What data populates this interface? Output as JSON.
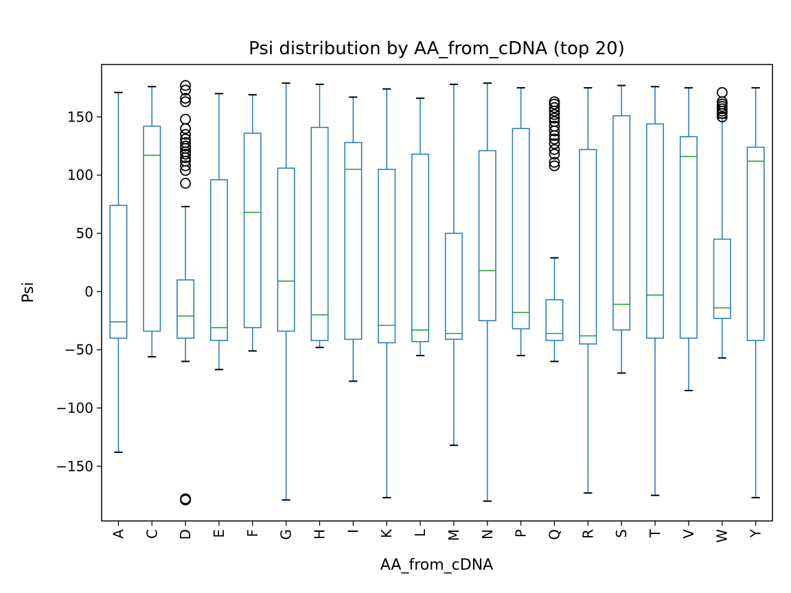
{
  "chart_data": {
    "type": "box",
    "title": "Psi distribution by AA_from_cDNA (top 20)",
    "xlabel": "AA_from_cDNA",
    "ylabel": "Psi",
    "ylim": [
      -197,
      195
    ],
    "yticks": [
      150,
      100,
      50,
      0,
      -50,
      -100,
      -150
    ],
    "ytick_labels": [
      "150",
      "100",
      "50",
      "0",
      "−50",
      "−100",
      "−150"
    ],
    "grid": false,
    "legend": "none",
    "colors": {
      "box": "#1f77b4",
      "median": "#2ca02c",
      "whisker_cap": "#000000",
      "outlier": "#000000"
    },
    "categories": [
      "A",
      "C",
      "D",
      "E",
      "F",
      "G",
      "H",
      "I",
      "K",
      "L",
      "M",
      "N",
      "P",
      "Q",
      "R",
      "S",
      "T",
      "V",
      "W",
      "Y"
    ],
    "boxes": [
      {
        "category": "A",
        "whisker_low": -138,
        "q1": -40,
        "median": -26,
        "q3": 74,
        "whisker_high": 171,
        "outliers": []
      },
      {
        "category": "C",
        "whisker_low": -56,
        "q1": -34,
        "median": 117,
        "q3": 142,
        "whisker_high": 176,
        "outliers": []
      },
      {
        "category": "D",
        "whisker_low": -60,
        "q1": -40,
        "median": -21,
        "q3": 10,
        "whisker_high": 73,
        "outliers": [
          93,
          104,
          108,
          112,
          115,
          118,
          120,
          123,
          125,
          128,
          131,
          135,
          140,
          148,
          163,
          166,
          173,
          177,
          -178,
          -179
        ]
      },
      {
        "category": "E",
        "whisker_low": -67,
        "q1": -42,
        "median": -31,
        "q3": 96,
        "whisker_high": 170,
        "outliers": []
      },
      {
        "category": "F",
        "whisker_low": -51,
        "q1": -31,
        "median": 68,
        "q3": 136,
        "whisker_high": 169,
        "outliers": []
      },
      {
        "category": "G",
        "whisker_low": -179,
        "q1": -34,
        "median": 9,
        "q3": 106,
        "whisker_high": 179,
        "outliers": []
      },
      {
        "category": "H",
        "whisker_low": -48,
        "q1": -42,
        "median": -20,
        "q3": 141,
        "whisker_high": 178,
        "outliers": []
      },
      {
        "category": "I",
        "whisker_low": -77,
        "q1": -41,
        "median": 105,
        "q3": 128,
        "whisker_high": 167,
        "outliers": []
      },
      {
        "category": "K",
        "whisker_low": -177,
        "q1": -44,
        "median": -29,
        "q3": 105,
        "whisker_high": 174,
        "outliers": []
      },
      {
        "category": "L",
        "whisker_low": -55,
        "q1": -43,
        "median": -33,
        "q3": 118,
        "whisker_high": 166,
        "outliers": []
      },
      {
        "category": "M",
        "whisker_low": -132,
        "q1": -41,
        "median": -36,
        "q3": 50,
        "whisker_high": 178,
        "outliers": []
      },
      {
        "category": "N",
        "whisker_low": -180,
        "q1": -25,
        "median": 18,
        "q3": 121,
        "whisker_high": 179,
        "outliers": []
      },
      {
        "category": "P",
        "whisker_low": -55,
        "q1": -32,
        "median": -18,
        "q3": 140,
        "whisker_high": 175,
        "outliers": []
      },
      {
        "category": "Q",
        "whisker_low": -60,
        "q1": -42,
        "median": -36,
        "q3": -7,
        "whisker_high": 29,
        "outliers": [
          108,
          111,
          118,
          122,
          127,
          131,
          134,
          138,
          142,
          146,
          149,
          152,
          155,
          158,
          161,
          163
        ]
      },
      {
        "category": "R",
        "whisker_low": -173,
        "q1": -45,
        "median": -38,
        "q3": 122,
        "whisker_high": 175,
        "outliers": []
      },
      {
        "category": "S",
        "whisker_low": -70,
        "q1": -33,
        "median": -11,
        "q3": 151,
        "whisker_high": 177,
        "outliers": []
      },
      {
        "category": "T",
        "whisker_low": -175,
        "q1": -40,
        "median": -3,
        "q3": 144,
        "whisker_high": 176,
        "outliers": []
      },
      {
        "category": "V",
        "whisker_low": -85,
        "q1": -40,
        "median": 116,
        "q3": 133,
        "whisker_high": 175,
        "outliers": []
      },
      {
        "category": "W",
        "whisker_low": -57,
        "q1": -23,
        "median": -14,
        "q3": 45,
        "whisker_high": 149,
        "outliers": [
          150,
          153,
          155,
          157,
          159,
          161,
          163,
          171
        ]
      },
      {
        "category": "Y",
        "whisker_low": -177,
        "q1": -42,
        "median": 112,
        "q3": 124,
        "whisker_high": 175,
        "outliers": []
      }
    ]
  }
}
